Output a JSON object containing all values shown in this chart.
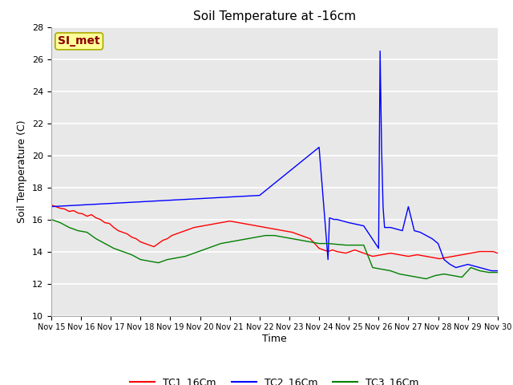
{
  "title": "Soil Temperature at -16cm",
  "xlabel": "Time",
  "ylabel": "Soil Temperature (C)",
  "ylim": [
    10,
    28
  ],
  "bg_color": "#e8e8e8",
  "grid_color": "#ffffff",
  "annotation_text": "SI_met",
  "annotation_color": "#8b0000",
  "annotation_bg": "#ffff99",
  "legend_labels": [
    "TC1_16Cm",
    "TC2_16Cm",
    "TC3_16Cm"
  ],
  "legend_colors": [
    "red",
    "blue",
    "green"
  ],
  "xtick_labels": [
    "Nov 15",
    "Nov 16",
    "Nov 17",
    "Nov 18",
    "Nov 19",
    "Nov 20",
    "Nov 21",
    "Nov 22",
    "Nov 23",
    "Nov 24",
    "Nov 25",
    "Nov 26",
    "Nov 27",
    "Nov 28",
    "Nov 29",
    "Nov 30"
  ],
  "ytick_values": [
    10,
    12,
    14,
    16,
    18,
    20,
    22,
    24,
    26,
    28
  ],
  "tc1_x": [
    0.0,
    0.15,
    0.3,
    0.45,
    0.6,
    0.75,
    0.9,
    1.05,
    1.2,
    1.35,
    1.5,
    1.65,
    1.8,
    1.95,
    2.1,
    2.25,
    2.4,
    2.55,
    2.7,
    2.85,
    3.0,
    3.15,
    3.3,
    3.45,
    3.6,
    3.75,
    3.9,
    4.05,
    4.2,
    4.35,
    4.5,
    4.65,
    4.8,
    4.95,
    5.1,
    5.25,
    5.4,
    5.55,
    5.7,
    5.85,
    6.0,
    6.15,
    6.3,
    6.45,
    6.6,
    6.75,
    6.9,
    7.05,
    7.2,
    7.35,
    7.5,
    7.65,
    7.8,
    7.95,
    8.1,
    8.25,
    8.4,
    8.55,
    8.7,
    8.85,
    9.0,
    9.15,
    9.3,
    9.45,
    9.6,
    9.75,
    9.9,
    10.05,
    10.2,
    10.35,
    10.5,
    10.65,
    10.8,
    10.95,
    11.1,
    11.25,
    11.4,
    11.55,
    11.7,
    11.85,
    12.0,
    12.15,
    12.3,
    12.45,
    12.6,
    12.75,
    12.9,
    13.05,
    13.2,
    13.35,
    13.5,
    13.65,
    13.8,
    13.95,
    14.1,
    14.25,
    14.4,
    14.55,
    14.7,
    14.85,
    15.0
  ],
  "tc1_y": [
    16.9,
    16.8,
    16.7,
    16.65,
    16.5,
    16.55,
    16.4,
    16.35,
    16.2,
    16.3,
    16.1,
    16.0,
    15.8,
    15.75,
    15.5,
    15.3,
    15.2,
    15.1,
    14.9,
    14.8,
    14.6,
    14.5,
    14.4,
    14.3,
    14.5,
    14.7,
    14.8,
    15.0,
    15.1,
    15.2,
    15.3,
    15.4,
    15.5,
    15.55,
    15.6,
    15.65,
    15.7,
    15.75,
    15.8,
    15.85,
    15.9,
    15.85,
    15.8,
    15.75,
    15.7,
    15.65,
    15.6,
    15.55,
    15.5,
    15.45,
    15.4,
    15.35,
    15.3,
    15.25,
    15.2,
    15.1,
    15.0,
    14.9,
    14.8,
    14.5,
    14.2,
    14.1,
    14.0,
    14.1,
    14.0,
    13.95,
    13.9,
    14.0,
    14.1,
    14.0,
    13.9,
    13.8,
    13.7,
    13.75,
    13.8,
    13.85,
    13.9,
    13.85,
    13.8,
    13.75,
    13.7,
    13.75,
    13.8,
    13.75,
    13.7,
    13.65,
    13.6,
    13.55,
    13.6,
    13.65,
    13.7,
    13.75,
    13.8,
    13.85,
    13.9,
    13.95,
    14.0,
    14.0,
    14.0,
    14.0,
    13.9
  ],
  "tc2_x": [
    0.0,
    7.0,
    9.0,
    9.3,
    9.35,
    9.5,
    9.6,
    10.0,
    10.5,
    11.0,
    11.05,
    11.1,
    11.15,
    11.2,
    11.4,
    11.6,
    11.8,
    12.0,
    12.2,
    12.4,
    12.6,
    12.8,
    13.0,
    13.2,
    13.4,
    13.6,
    13.8,
    14.0,
    14.2,
    14.4,
    14.6,
    14.8,
    15.0
  ],
  "tc2_y": [
    16.8,
    17.5,
    20.5,
    13.5,
    16.1,
    16.0,
    16.0,
    15.8,
    15.6,
    14.2,
    26.5,
    20.5,
    16.8,
    15.5,
    15.5,
    15.4,
    15.3,
    16.8,
    15.3,
    15.2,
    15.0,
    14.8,
    14.5,
    13.5,
    13.2,
    13.0,
    13.1,
    13.2,
    13.1,
    13.0,
    12.9,
    12.8,
    12.8
  ],
  "tc3_x": [
    0.0,
    0.3,
    0.6,
    0.9,
    1.2,
    1.5,
    1.8,
    2.1,
    2.4,
    2.7,
    3.0,
    3.3,
    3.6,
    3.9,
    4.2,
    4.5,
    4.8,
    5.1,
    5.4,
    5.7,
    6.0,
    6.3,
    6.6,
    6.9,
    7.2,
    7.5,
    7.8,
    8.1,
    8.4,
    8.7,
    9.0,
    9.3,
    9.6,
    9.9,
    10.2,
    10.5,
    10.8,
    11.1,
    11.4,
    11.7,
    12.0,
    12.3,
    12.6,
    12.9,
    13.2,
    13.5,
    13.8,
    14.1,
    14.4,
    14.7,
    15.0
  ],
  "tc3_y": [
    16.0,
    15.8,
    15.5,
    15.3,
    15.2,
    14.8,
    14.5,
    14.2,
    14.0,
    13.8,
    13.5,
    13.4,
    13.3,
    13.5,
    13.6,
    13.7,
    13.9,
    14.1,
    14.3,
    14.5,
    14.6,
    14.7,
    14.8,
    14.9,
    15.0,
    15.0,
    14.9,
    14.8,
    14.7,
    14.6,
    14.5,
    14.5,
    14.45,
    14.4,
    14.4,
    14.4,
    13.0,
    12.9,
    12.8,
    12.6,
    12.5,
    12.4,
    12.3,
    12.5,
    12.6,
    12.5,
    12.4,
    13.0,
    12.8,
    12.7,
    12.7
  ]
}
